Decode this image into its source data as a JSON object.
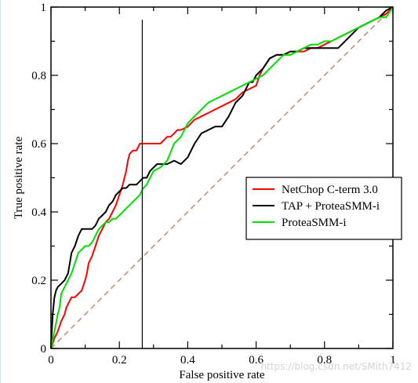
{
  "chart_data": {
    "type": "line",
    "title": "",
    "xlabel": "False positive rate",
    "ylabel": "True positive rate",
    "xlim": [
      0,
      1
    ],
    "ylim": [
      0,
      1
    ],
    "x_ticks": [
      {
        "value": 0,
        "label": "0"
      },
      {
        "value": 0.2,
        "label": "0.2"
      },
      {
        "value": 0.4,
        "label": "0.4"
      },
      {
        "value": 0.6,
        "label": "0.6"
      },
      {
        "value": 0.8,
        "label": "0.8"
      },
      {
        "value": 1,
        "label": "1"
      }
    ],
    "y_ticks": [
      {
        "value": 0,
        "label": "0"
      },
      {
        "value": 0.2,
        "label": "0.2"
      },
      {
        "value": 0.4,
        "label": "0.4"
      },
      {
        "value": 0.6,
        "label": "0.6"
      },
      {
        "value": 0.8,
        "label": "0.8"
      },
      {
        "value": 1,
        "label": "1"
      }
    ],
    "minor_tick_step": 0.1,
    "grid": false,
    "legend_position": "right-middle",
    "vertical_line_x": 0.267,
    "diagonal": {
      "x": [
        0,
        1
      ],
      "y": [
        0,
        1
      ],
      "color": "#c0907a",
      "dashed": true
    },
    "series": [
      {
        "name": "NetChop C-term 3.0",
        "color": "#ff0000",
        "x": [
          0,
          0.01,
          0.02,
          0.03,
          0.04,
          0.045,
          0.05,
          0.06,
          0.07,
          0.08,
          0.09,
          0.1,
          0.105,
          0.11,
          0.12,
          0.13,
          0.14,
          0.15,
          0.16,
          0.17,
          0.18,
          0.19,
          0.2,
          0.21,
          0.215,
          0.22,
          0.225,
          0.23,
          0.24,
          0.25,
          0.26,
          0.27,
          0.28,
          0.3,
          0.32,
          0.34,
          0.35,
          0.36,
          0.37,
          0.38,
          0.4,
          0.42,
          0.44,
          0.46,
          0.48,
          0.5,
          0.52,
          0.54,
          0.56,
          0.58,
          0.6,
          0.61,
          0.62,
          0.64,
          0.66,
          0.68,
          0.7,
          0.72,
          0.74,
          0.76,
          0.78,
          0.8,
          0.82,
          0.84,
          0.86,
          0.88,
          0.9,
          0.92,
          0.94,
          0.96,
          0.98,
          1
        ],
        "y": [
          0,
          0.03,
          0.05,
          0.08,
          0.1,
          0.12,
          0.13,
          0.15,
          0.15,
          0.16,
          0.17,
          0.2,
          0.22,
          0.25,
          0.27,
          0.3,
          0.33,
          0.35,
          0.37,
          0.38,
          0.4,
          0.42,
          0.45,
          0.48,
          0.5,
          0.52,
          0.55,
          0.57,
          0.58,
          0.58,
          0.6,
          0.6,
          0.6,
          0.6,
          0.6,
          0.62,
          0.62,
          0.63,
          0.64,
          0.64,
          0.65,
          0.67,
          0.68,
          0.69,
          0.7,
          0.71,
          0.72,
          0.73,
          0.75,
          0.76,
          0.77,
          0.8,
          0.82,
          0.85,
          0.86,
          0.86,
          0.86,
          0.87,
          0.87,
          0.88,
          0.88,
          0.89,
          0.9,
          0.91,
          0.92,
          0.93,
          0.94,
          0.95,
          0.96,
          0.97,
          0.98,
          1
        ]
      },
      {
        "name": "TAP + ProteaSMM-i",
        "color": "#000000",
        "x": [
          0,
          0.005,
          0.01,
          0.015,
          0.02,
          0.03,
          0.04,
          0.05,
          0.055,
          0.06,
          0.07,
          0.08,
          0.09,
          0.1,
          0.11,
          0.12,
          0.13,
          0.14,
          0.15,
          0.16,
          0.17,
          0.18,
          0.19,
          0.2,
          0.21,
          0.22,
          0.23,
          0.24,
          0.25,
          0.26,
          0.27,
          0.28,
          0.29,
          0.3,
          0.31,
          0.32,
          0.33,
          0.34,
          0.36,
          0.38,
          0.4,
          0.42,
          0.44,
          0.46,
          0.48,
          0.5,
          0.52,
          0.54,
          0.56,
          0.58,
          0.59,
          0.6,
          0.61,
          0.62,
          0.64,
          0.66,
          0.68,
          0.7,
          0.72,
          0.74,
          0.76,
          0.78,
          0.8,
          0.82,
          0.84,
          0.86,
          0.88,
          0.9,
          0.92,
          0.94,
          0.96,
          0.98,
          1
        ],
        "y": [
          0,
          0.1,
          0.15,
          0.17,
          0.18,
          0.19,
          0.2,
          0.22,
          0.25,
          0.28,
          0.3,
          0.33,
          0.35,
          0.35,
          0.35,
          0.35,
          0.36,
          0.38,
          0.39,
          0.4,
          0.42,
          0.43,
          0.45,
          0.46,
          0.47,
          0.47,
          0.48,
          0.48,
          0.48,
          0.49,
          0.5,
          0.5,
          0.52,
          0.53,
          0.54,
          0.54,
          0.54,
          0.54,
          0.55,
          0.54,
          0.56,
          0.6,
          0.63,
          0.64,
          0.65,
          0.65,
          0.68,
          0.72,
          0.74,
          0.78,
          0.78,
          0.8,
          0.81,
          0.82,
          0.85,
          0.86,
          0.86,
          0.87,
          0.87,
          0.88,
          0.88,
          0.88,
          0.88,
          0.88,
          0.88,
          0.9,
          0.92,
          0.94,
          0.95,
          0.96,
          0.97,
          0.99,
          1
        ]
      },
      {
        "name": "ProteaSMM-i",
        "color": "#00e000",
        "x": [
          0,
          0.01,
          0.02,
          0.025,
          0.03,
          0.04,
          0.05,
          0.06,
          0.07,
          0.08,
          0.09,
          0.1,
          0.11,
          0.12,
          0.13,
          0.14,
          0.15,
          0.16,
          0.17,
          0.18,
          0.19,
          0.2,
          0.21,
          0.22,
          0.23,
          0.24,
          0.25,
          0.26,
          0.27,
          0.28,
          0.29,
          0.3,
          0.32,
          0.34,
          0.36,
          0.38,
          0.4,
          0.42,
          0.44,
          0.46,
          0.48,
          0.5,
          0.52,
          0.54,
          0.56,
          0.58,
          0.6,
          0.62,
          0.64,
          0.66,
          0.68,
          0.7,
          0.72,
          0.74,
          0.76,
          0.78,
          0.8,
          0.82,
          0.84,
          0.86,
          0.88,
          0.9,
          0.92,
          0.94,
          0.96,
          0.98,
          1
        ],
        "y": [
          0,
          0.05,
          0.1,
          0.12,
          0.16,
          0.18,
          0.2,
          0.22,
          0.25,
          0.28,
          0.29,
          0.3,
          0.3,
          0.31,
          0.33,
          0.35,
          0.36,
          0.37,
          0.37,
          0.38,
          0.38,
          0.39,
          0.4,
          0.41,
          0.42,
          0.43,
          0.44,
          0.45,
          0.47,
          0.48,
          0.5,
          0.52,
          0.53,
          0.55,
          0.6,
          0.62,
          0.66,
          0.68,
          0.7,
          0.72,
          0.73,
          0.74,
          0.75,
          0.76,
          0.77,
          0.78,
          0.79,
          0.8,
          0.82,
          0.84,
          0.86,
          0.86,
          0.87,
          0.88,
          0.89,
          0.89,
          0.9,
          0.9,
          0.91,
          0.92,
          0.93,
          0.94,
          0.95,
          0.96,
          0.97,
          0.97,
          1
        ]
      }
    ]
  },
  "watermark": "https://blog.csdn.net/SMith7412"
}
